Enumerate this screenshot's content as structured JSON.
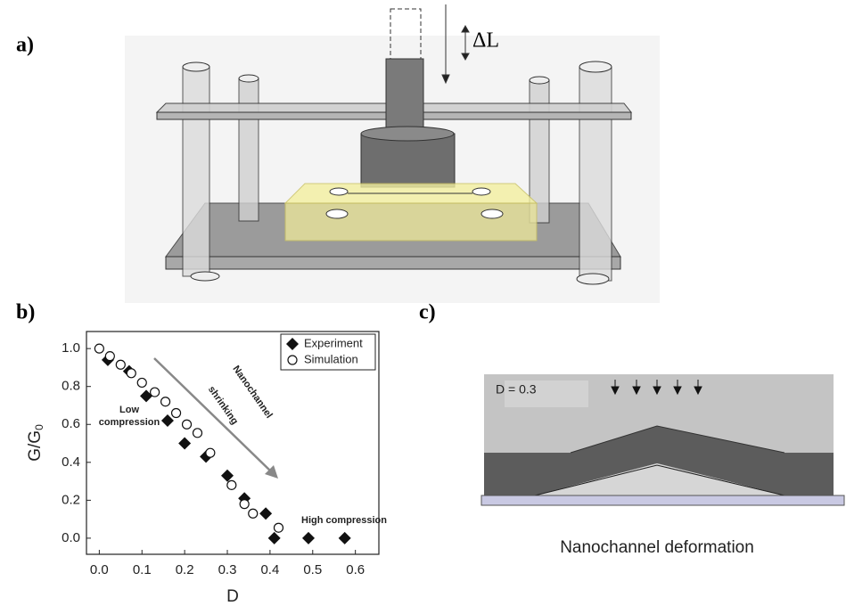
{
  "figure": {
    "panel_a_label": "a)",
    "panel_b_label": "b)",
    "panel_c_label": "c)",
    "delta_label": "ΔL",
    "c_inset_label": "D = 0.3",
    "c_caption": "Nanochannel deformation"
  },
  "chart_data": {
    "type": "scatter",
    "xlabel": "D",
    "ylabel": "G/G",
    "ylabel_subscript": "0",
    "xlim": [
      -0.03,
      0.655
    ],
    "ylim": [
      -0.085,
      1.09
    ],
    "xticks": [
      {
        "value": 0,
        "label": "0.0"
      },
      {
        "value": 0.1,
        "label": "0.1"
      },
      {
        "value": 0.2,
        "label": "0.2"
      },
      {
        "value": 0.3,
        "label": "0.3"
      },
      {
        "value": 0.4,
        "label": "0.4"
      },
      {
        "value": 0.5,
        "label": "0.5"
      },
      {
        "value": 0.6,
        "label": "0.6"
      }
    ],
    "yticks": [
      {
        "value": 0,
        "label": "0.0"
      },
      {
        "value": 0.2,
        "label": "0.2"
      },
      {
        "value": 0.4,
        "label": "0.4"
      },
      {
        "value": 0.6,
        "label": "0.6"
      },
      {
        "value": 0.8,
        "label": "0.8"
      },
      {
        "value": 1,
        "label": "1.0"
      }
    ],
    "legend": "upper right",
    "series": [
      {
        "name": "Experiment",
        "color": "#111111",
        "marker": "diamond",
        "x": [
          0.02,
          0.07,
          0.11,
          0.16,
          0.2,
          0.25,
          0.3,
          0.34,
          0.39,
          0.41,
          0.49,
          0.575
        ],
        "values": [
          0.94,
          0.88,
          0.75,
          0.62,
          0.5,
          0.43,
          0.33,
          0.21,
          0.13,
          0,
          0,
          0
        ]
      },
      {
        "name": "Simulation",
        "color": "#111111",
        "marker": "circle",
        "x": [
          0,
          0.025,
          0.05,
          0.075,
          0.1,
          0.13,
          0.155,
          0.18,
          0.205,
          0.23,
          0.26,
          0.31,
          0.34,
          0.36,
          0.42
        ],
        "values": [
          1.0,
          0.96,
          0.915,
          0.87,
          0.82,
          0.77,
          0.72,
          0.66,
          0.6,
          0.555,
          0.45,
          0.28,
          0.18,
          0.13,
          0.055
        ]
      }
    ],
    "annotations": [
      "Low",
      "compression",
      "Nanochannel",
      "shrinking",
      "High compression"
    ]
  }
}
